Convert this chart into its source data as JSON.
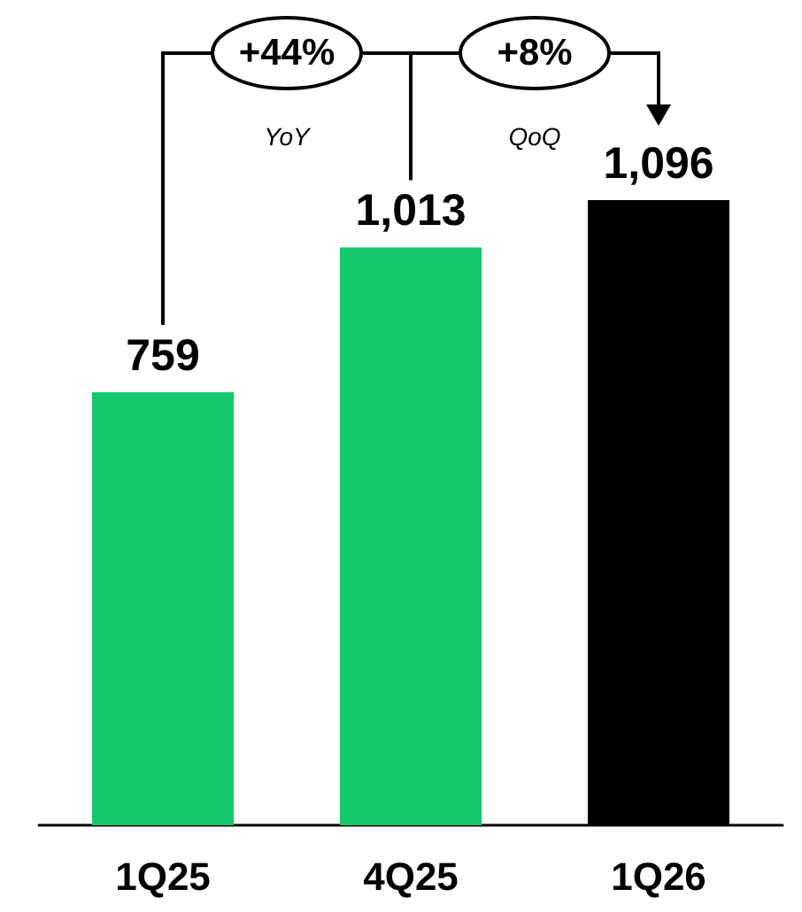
{
  "chart_data": {
    "type": "bar",
    "categories": [
      "1Q25",
      "4Q25",
      "1Q26"
    ],
    "values": [
      759,
      1013,
      1096
    ],
    "colors": [
      "#14c86e",
      "#14c86e",
      "#000000"
    ],
    "value_labels": [
      "759",
      "1,013",
      "1,096"
    ],
    "annotations": [
      "+44%",
      "YoY",
      "+8%",
      "QoQ"
    ]
  }
}
